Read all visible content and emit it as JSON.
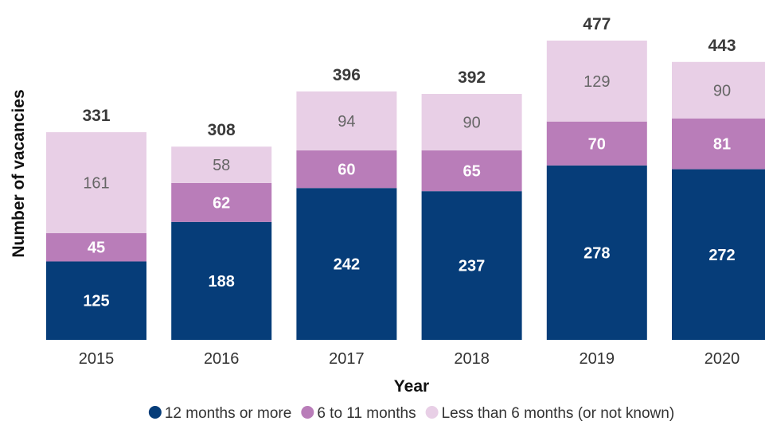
{
  "chart_data": {
    "type": "bar",
    "stacked": true,
    "categories": [
      "2015",
      "2016",
      "2017",
      "2018",
      "2019",
      "2020"
    ],
    "series": [
      {
        "name": "12 months or more",
        "values": [
          125,
          188,
          242,
          237,
          278,
          272
        ],
        "color": "#063d79",
        "label_color": "#ffffff"
      },
      {
        "name": "6 to 11 months",
        "values": [
          45,
          62,
          60,
          65,
          70,
          81
        ],
        "color": "#b97db9",
        "label_color": "#ffffff"
      },
      {
        "name": "Less than 6 months (or not known)",
        "values": [
          161,
          58,
          94,
          90,
          129,
          90
        ],
        "color": "#e8cfe6",
        "label_color": "#666666"
      }
    ],
    "totals": [
      331,
      308,
      396,
      392,
      477,
      443
    ],
    "xlabel": "Year",
    "ylabel": "Number of vacancies",
    "ylim": [
      0,
      477
    ],
    "grid": false,
    "legend_position": "bottom"
  }
}
